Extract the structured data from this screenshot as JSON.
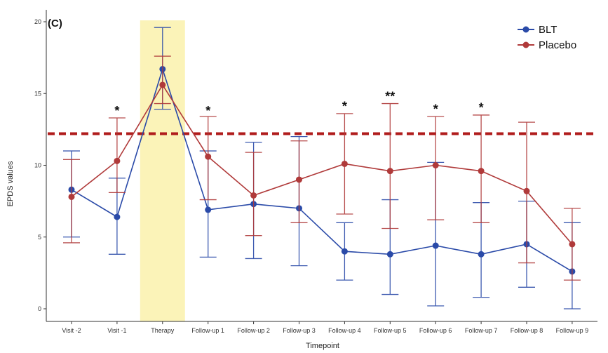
{
  "chart_data": {
    "type": "line",
    "panel_label": "(C)",
    "xlabel": "Timepoint",
    "ylabel": "EPDS values",
    "ylim": [
      0,
      20
    ],
    "yticks": [
      "0",
      "5",
      "10",
      "15",
      "20"
    ],
    "categories": [
      "Visit -2",
      "Visit -1",
      "Therapy",
      "Follow-up 1",
      "Follow-up 2",
      "Follow-up 3",
      "Follow-up 4",
      "Follow-up 5",
      "Follow-up 6",
      "Follow-up 7",
      "Follow-up 8",
      "Follow-up 9"
    ],
    "series": [
      {
        "name": "BLT",
        "color": "#2a4aa8",
        "values": [
          8.3,
          6.4,
          16.7,
          6.9,
          7.3,
          7.0,
          4.0,
          3.8,
          4.4,
          3.8,
          4.5,
          2.6
        ],
        "error_low": [
          5.0,
          3.8,
          13.9,
          3.6,
          3.5,
          3.0,
          2.0,
          1.0,
          0.2,
          0.8,
          1.5,
          0.0
        ],
        "error_high": [
          11.0,
          9.1,
          19.6,
          11.0,
          11.6,
          12.0,
          6.0,
          7.6,
          10.2,
          7.4,
          7.5,
          6.0
        ]
      },
      {
        "name": "Placebo",
        "color": "#b03a3a",
        "values": [
          7.8,
          10.3,
          15.6,
          10.6,
          7.9,
          9.0,
          10.1,
          9.6,
          10.0,
          9.6,
          8.2,
          4.5
        ],
        "error_low": [
          4.6,
          8.1,
          14.3,
          7.6,
          5.1,
          6.0,
          6.6,
          5.6,
          6.2,
          6.0,
          3.2,
          2.0
        ],
        "error_high": [
          10.4,
          13.3,
          17.6,
          13.4,
          10.9,
          11.7,
          13.6,
          14.3,
          13.4,
          13.5,
          13.0,
          7.0
        ]
      }
    ],
    "threshold": {
      "value": 12.2,
      "color": "#b01c1c"
    },
    "highlight": {
      "category": "Therapy",
      "color": "#fbf3b8"
    },
    "significance": [
      {
        "category": "Visit -1",
        "label": "*",
        "y": 13.8
      },
      {
        "category": "Follow-up 1",
        "label": "*",
        "y": 13.8
      },
      {
        "category": "Follow-up 4",
        "label": "*",
        "y": 14.1
      },
      {
        "category": "Follow-up 5",
        "label": "**",
        "y": 14.8
      },
      {
        "category": "Follow-up 6",
        "label": "*",
        "y": 13.9
      },
      {
        "category": "Follow-up 7",
        "label": "*",
        "y": 14.0
      }
    ],
    "legend": {
      "position": "top-right",
      "entries": [
        "BLT",
        "Placebo"
      ]
    },
    "grid": false
  }
}
